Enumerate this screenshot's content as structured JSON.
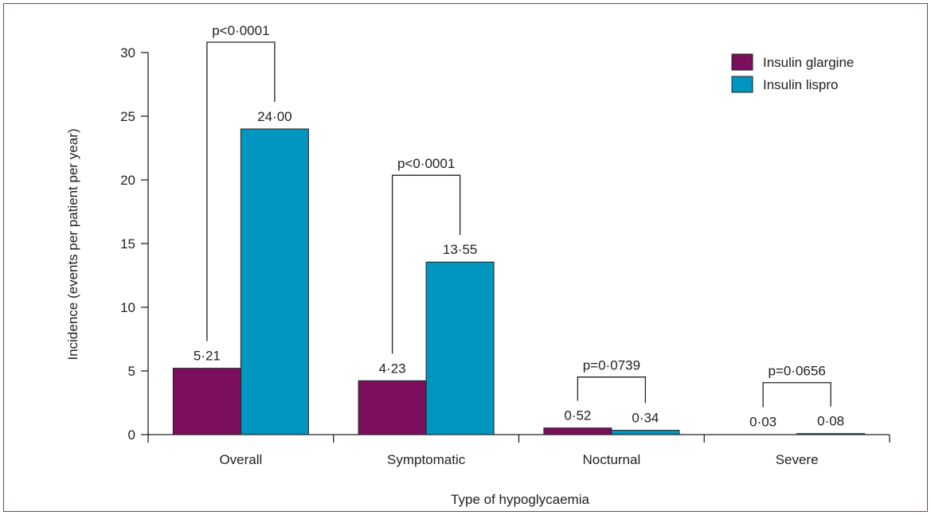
{
  "chart_data": {
    "type": "bar",
    "categories": [
      "Overall",
      "Symptomatic",
      "Nocturnal",
      "Severe"
    ],
    "series": [
      {
        "name": "Insulin glargine",
        "values": [
          5.21,
          4.23,
          0.52,
          0.03
        ],
        "labels": [
          "5·21",
          "4·23",
          "0·52",
          "0·03"
        ]
      },
      {
        "name": "Insulin lispro",
        "values": [
          24.0,
          13.55,
          0.34,
          0.08
        ],
        "labels": [
          "24·00",
          "13·55",
          "0·34",
          "0·08"
        ]
      }
    ],
    "colors": [
      "#7b0f5e",
      "#0096bf"
    ],
    "p_values": [
      "p<0·0001",
      "p<0·0001",
      "p=0·0739",
      "p=0·0656"
    ],
    "xlabel": "Type of hypoglycaemia",
    "ylabel": "Incidence (events per patient per year)",
    "ylim": [
      0,
      30
    ],
    "yticks": [
      0,
      5,
      10,
      15,
      20,
      25,
      30
    ],
    "legend_position": "top-right",
    "grid": false
  }
}
